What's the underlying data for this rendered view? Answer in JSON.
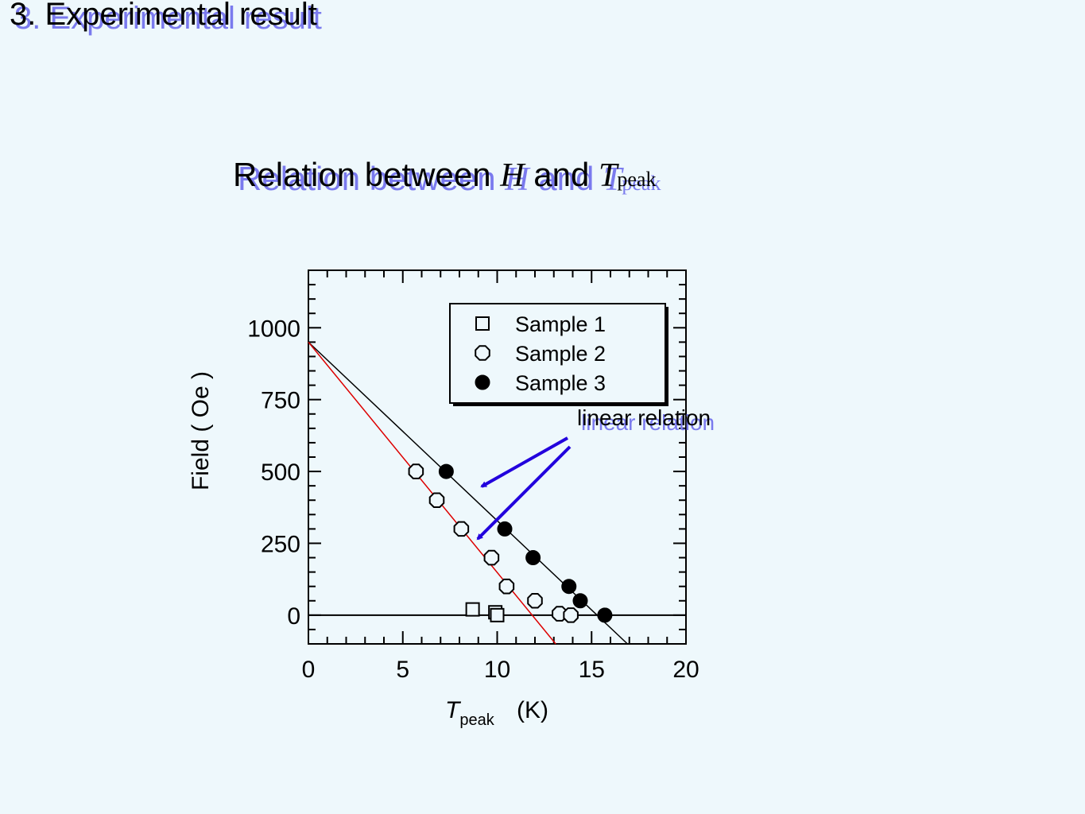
{
  "slide_title": "3. Experimental result",
  "chart_data": {
    "type": "scatter",
    "title_parts": [
      "Relation between ",
      "H",
      " and ",
      "T",
      "peak"
    ],
    "x_label_parts": [
      "T",
      "peak",
      "(K)"
    ],
    "y_label": "Field ( Oe )",
    "xlim": [
      0,
      20
    ],
    "xticks": [
      0,
      5,
      10,
      15,
      20
    ],
    "ylim": [
      -100,
      1200
    ],
    "yticks": [
      0,
      250,
      500,
      750,
      1000
    ],
    "zero_line": true,
    "legend": "upper right",
    "series": [
      {
        "name": "Sample 1",
        "color": "#000000",
        "marker": "square",
        "filled": false,
        "x": [
          8.7,
          9.9,
          10.0
        ],
        "y": [
          20,
          10,
          0
        ]
      },
      {
        "name": "Sample 2",
        "color": "#000000",
        "marker": "hexagon",
        "filled": false,
        "x": [
          5.7,
          6.8,
          8.1,
          9.7,
          10.5,
          12.0,
          13.3,
          13.9
        ],
        "y": [
          500,
          400,
          300,
          200,
          100,
          50,
          5,
          0
        ]
      },
      {
        "name": "Sample 3",
        "color": "#000000",
        "marker": "circle",
        "filled": true,
        "x": [
          7.3,
          10.4,
          11.9,
          13.8,
          14.4,
          15.7
        ],
        "y": [
          500,
          300,
          200,
          100,
          50,
          0
        ]
      }
    ],
    "fit_lines": [
      {
        "color": "#000000",
        "x": [
          0,
          16.9
        ],
        "y": [
          950,
          -100
        ]
      },
      {
        "color": "#dd0000",
        "x": [
          0,
          13.1
        ],
        "y": [
          950,
          -100
        ]
      }
    ],
    "annotation": "linear relation"
  }
}
